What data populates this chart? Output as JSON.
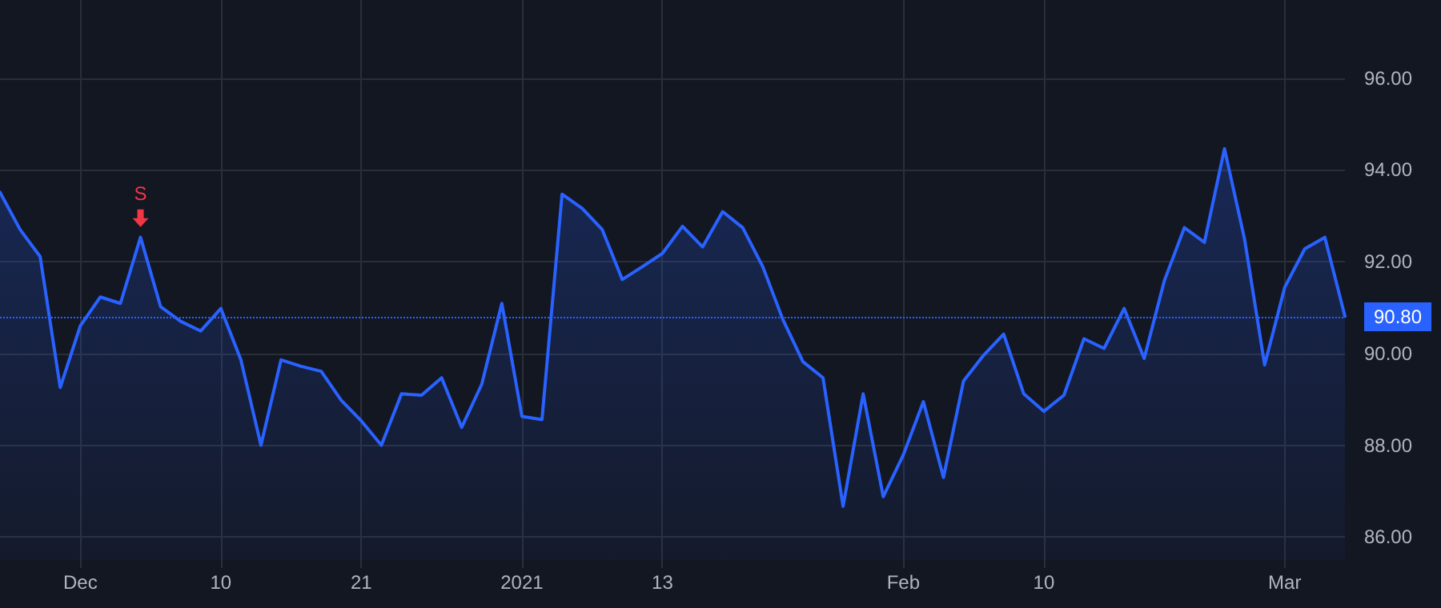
{
  "chart_data": {
    "type": "area",
    "categories": [
      null,
      null,
      null,
      null,
      "Dec",
      null,
      null,
      null,
      null,
      null,
      null,
      "10",
      null,
      null,
      null,
      null,
      null,
      null,
      "21",
      null,
      null,
      null,
      null,
      null,
      null,
      null,
      "2021",
      null,
      null,
      null,
      null,
      null,
      null,
      "13",
      null,
      null,
      null,
      null,
      null,
      null,
      null,
      null,
      null,
      null,
      null,
      "Feb",
      null,
      null,
      null,
      null,
      null,
      null,
      "10",
      null,
      null,
      null,
      null,
      null,
      null,
      null,
      null,
      null,
      null,
      null,
      "Mar",
      null,
      null,
      null
    ],
    "series": [
      {
        "color": "#2962ff",
        "values": [
          93.51,
          92.7,
          92.11,
          89.26,
          90.6,
          91.23,
          91.09,
          92.53,
          91.02,
          90.7,
          90.49,
          90.98,
          89.86,
          88.0,
          89.86,
          89.72,
          89.61,
          88.98,
          88.53,
          88.0,
          89.12,
          89.09,
          89.47,
          88.39,
          89.33,
          91.09,
          88.63,
          88.56,
          93.47,
          93.16,
          92.7,
          91.61,
          91.89,
          92.18,
          92.77,
          92.32,
          93.09,
          92.74,
          91.89,
          90.74,
          89.82,
          89.47,
          86.67,
          89.12,
          86.88,
          87.79,
          88.95,
          87.3,
          89.4,
          89.96,
          90.42,
          89.12,
          88.74,
          89.09,
          90.32,
          90.11,
          90.98,
          89.89,
          91.58,
          92.74,
          92.42,
          94.46,
          92.49,
          89.75,
          91.44,
          92.28,
          92.53,
          90.81
        ]
      }
    ],
    "ylim": [
      85.5,
      97.7
    ],
    "yticks": [
      {
        "value": 86,
        "label": "86.00"
      },
      {
        "value": 88,
        "label": "88.00"
      },
      {
        "value": 90,
        "label": "90.00"
      },
      {
        "value": 92,
        "label": "92.00"
      },
      {
        "value": 94,
        "label": "94.00"
      },
      {
        "value": 96,
        "label": "96.00"
      }
    ],
    "ref_lines": [
      {
        "axis": "y",
        "value": 90.8,
        "label": "90.80",
        "color": "#2962ff",
        "line_style": "dotted"
      }
    ],
    "annotations": [
      {
        "text": "S",
        "y": 92.53
      }
    ],
    "grid": true,
    "marker": "none",
    "line_style": "solid"
  }
}
